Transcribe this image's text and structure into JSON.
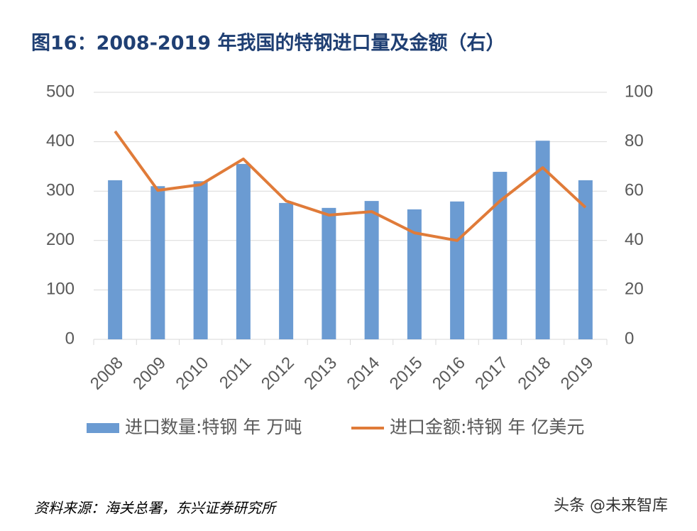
{
  "chart_data": {
    "type": "bar_line",
    "title": "图16：2008-2019 年我国的特钢进口量及金额（右）",
    "categories": [
      "2008",
      "2009",
      "2010",
      "2011",
      "2012",
      "2013",
      "2014",
      "2015",
      "2016",
      "2017",
      "2018",
      "2019"
    ],
    "series": [
      {
        "name": "进口数量:特钢 年 万吨",
        "type": "bar",
        "color": "#6b9bd2",
        "values": [
          322,
          310,
          320,
          355,
          276,
          266,
          280,
          263,
          279,
          339,
          402,
          322
        ]
      },
      {
        "name": "进口金额:特钢 年 亿美元",
        "type": "line",
        "axis": "y2",
        "color": "#e07b39",
        "values": [
          84.2,
          60.3,
          62.6,
          73,
          56,
          50.3,
          51.7,
          43.1,
          40,
          56,
          69.5,
          53.4
        ]
      }
    ],
    "ylim": [
      0,
      500
    ],
    "yticks": [
      0,
      100,
      200,
      300,
      400,
      500
    ],
    "y2lim": [
      0,
      100
    ],
    "y2ticks": [
      0,
      20,
      40,
      60,
      80,
      100
    ],
    "grid": true,
    "source": "资料来源：海关总署，东兴证券研究所",
    "watermark": "头条 @未来智库"
  }
}
